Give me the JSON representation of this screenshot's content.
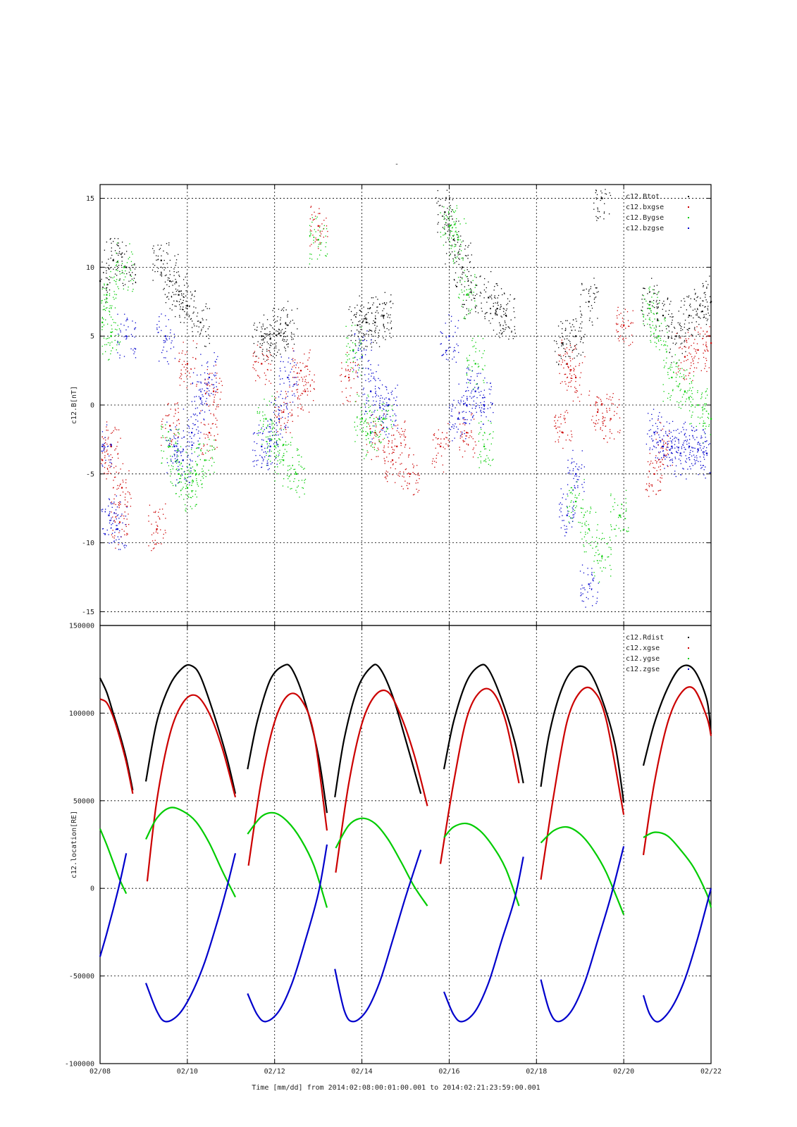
{
  "page_title": "-",
  "footer": {
    "time_label": "Time [mm/dd]  from 2014:02:08:00:01:00.001  to  2014:02:21:23:59:00.001"
  },
  "chart_data": [
    {
      "type": "scatter",
      "ylabel": "c12.B[nT]",
      "xlabel": "",
      "ylim": [
        -16,
        16
      ],
      "yticks": [
        -15,
        -10,
        -5,
        0,
        5,
        10,
        15
      ],
      "xlim": [
        0,
        14
      ],
      "x_unit": "days since 02/08 00:00",
      "grid": true,
      "legend_position": "top-right",
      "series": [
        {
          "name": "c12.Btot",
          "color": "#000000",
          "x": [
            0.0,
            0.3,
            0.6,
            1.4,
            1.6,
            1.8,
            2.0,
            2.3,
            3.7,
            3.9,
            4.1,
            4.3,
            5.9,
            6.1,
            6.3,
            6.5,
            7.9,
            8.1,
            8.3,
            8.5,
            8.9,
            9.1,
            9.3,
            10.6,
            10.9,
            11.2,
            11.5,
            12.6,
            12.9,
            13.2,
            13.5,
            13.8,
            14.0
          ],
          "y": [
            9,
            10.5,
            10,
            10.5,
            9,
            8,
            7.2,
            6,
            5,
            4.8,
            5.2,
            5.8,
            5.8,
            6,
            6,
            6.5,
            14,
            12,
            10,
            8.2,
            7.8,
            7,
            6.5,
            4.5,
            5,
            7.5,
            15,
            7.5,
            6.5,
            5,
            6.5,
            6.8,
            7.5
          ]
        },
        {
          "name": "c12.bxgse",
          "color": "#cc0000",
          "x": [
            0.05,
            0.25,
            0.5,
            0.45,
            1.3,
            1.6,
            2.0,
            2.5,
            2.6,
            3.7,
            4.2,
            4.6,
            4.7,
            5.0,
            5.7,
            6.3,
            6.7,
            6.8,
            7.1,
            7.8,
            8.4,
            10.6,
            10.7,
            10.9,
            11.4,
            11.7,
            12.0,
            12.7,
            12.9,
            13.4,
            13.7,
            14.0
          ],
          "y": [
            -4,
            -3,
            -6,
            -8.5,
            -9,
            -1.5,
            3,
            -2,
            1,
            3,
            -0.5,
            2.5,
            1,
            13,
            2,
            -2,
            -4,
            -3,
            -5,
            -3,
            -2,
            -2,
            3,
            2,
            -0.5,
            -1,
            5.8,
            -5,
            -3,
            3.5,
            4,
            4.5
          ]
        },
        {
          "name": "c12.Bygse",
          "color": "#00cc00",
          "x": [
            0.05,
            0.15,
            0.25,
            0.55,
            1.6,
            1.8,
            2.0,
            2.2,
            2.4,
            3.8,
            4.0,
            4.2,
            4.5,
            5.0,
            5.8,
            6.0,
            6.2,
            6.5,
            8.0,
            8.2,
            8.4,
            8.6,
            8.8,
            10.9,
            11.2,
            11.5,
            11.9,
            12.6,
            12.8,
            13.1,
            13.4,
            13.7,
            14.0
          ],
          "y": [
            6,
            8,
            5,
            10,
            -3,
            -5,
            -6,
            -5,
            -4,
            -1,
            -3,
            -4,
            -5,
            12,
            4,
            -1,
            -2,
            -1,
            13,
            12,
            8,
            3,
            -3,
            -7,
            -9,
            -11,
            -8,
            7,
            5,
            2,
            1,
            0,
            -1
          ]
        },
        {
          "name": "c12.bzgse",
          "color": "#0000cc",
          "x": [
            0.05,
            0.2,
            0.4,
            0.6,
            1.5,
            1.7,
            1.9,
            2.1,
            2.3,
            2.5,
            3.7,
            3.9,
            4.1,
            4.3,
            6.0,
            6.2,
            6.4,
            6.6,
            8.0,
            8.2,
            8.4,
            8.6,
            8.8,
            10.7,
            10.9,
            11.2,
            12.7,
            12.9,
            13.1,
            13.3,
            13.5,
            13.7,
            13.9
          ],
          "y": [
            -3,
            -8,
            -9,
            5,
            5,
            -3,
            -4,
            -2,
            0.5,
            2,
            -3,
            -3,
            -1,
            2,
            3.5,
            1,
            -1,
            0,
            5,
            -1,
            0,
            1,
            0,
            -8,
            -5,
            -13,
            -2,
            -3,
            -3,
            -3.5,
            -3,
            -3.2,
            -3.5
          ]
        }
      ]
    },
    {
      "type": "line",
      "ylabel": "c12.location[RE]",
      "xlabel": "Time [mm/dd]",
      "ylim": [
        -100000,
        150000
      ],
      "yticks": [
        -100000,
        -50000,
        0,
        50000,
        100000,
        150000
      ],
      "xlim": [
        0,
        14
      ],
      "x_unit": "days since 02/08 00:00",
      "xticks": [
        0,
        2,
        4,
        6,
        8,
        10,
        12,
        14
      ],
      "categories": [
        "02/08",
        "02/10",
        "02/12",
        "02/14",
        "02/16",
        "02/18",
        "02/20",
        "02/22"
      ],
      "grid": true,
      "legend_position": "top-right",
      "series": [
        {
          "name": "c12.Rdist",
          "color": "#000000",
          "segments": [
            {
              "x": [
                0.0,
                0.15,
                0.3,
                0.45,
                0.6,
                0.75
              ],
              "y": [
                120000,
                112000,
                100000,
                88000,
                74000,
                56000
              ]
            },
            {
              "x": [
                1.05,
                1.3,
                1.6,
                1.9,
                2.1,
                2.3,
                2.6,
                2.9,
                3.1
              ],
              "y": [
                61000,
                95000,
                116000,
                126000,
                127000,
                121000,
                100000,
                75000,
                54000
              ]
            },
            {
              "x": [
                3.38,
                3.6,
                3.9,
                4.2,
                4.4,
                4.7,
                5.0,
                5.2
              ],
              "y": [
                68000,
                95000,
                119000,
                127000,
                125000,
                106000,
                76000,
                43000
              ]
            },
            {
              "x": [
                5.38,
                5.6,
                5.9,
                6.2,
                6.4,
                6.7,
                7.0,
                7.35
              ],
              "y": [
                52000,
                86000,
                114000,
                126000,
                126000,
                110000,
                85000,
                54000
              ]
            },
            {
              "x": [
                7.88,
                8.1,
                8.4,
                8.7,
                8.9,
                9.2,
                9.5,
                9.7
              ],
              "y": [
                68000,
                95000,
                118000,
                127000,
                125000,
                108000,
                84000,
                60000
              ]
            },
            {
              "x": [
                10.1,
                10.3,
                10.6,
                10.9,
                11.2,
                11.5,
                11.8,
                12.0
              ],
              "y": [
                58000,
                89000,
                115000,
                126000,
                124000,
                108000,
                82000,
                49000
              ]
            },
            {
              "x": [
                12.45,
                12.7,
                13.0,
                13.3,
                13.6,
                13.9,
                14.0
              ],
              "y": [
                70000,
                94000,
                114000,
                126000,
                125000,
                108000,
                88000
              ]
            }
          ]
        },
        {
          "name": "c12.xgse",
          "color": "#cc0000",
          "segments": [
            {
              "x": [
                0.0,
                0.15,
                0.3,
                0.45,
                0.6,
                0.75
              ],
              "y": [
                108000,
                106000,
                98000,
                86000,
                72000,
                54000
              ]
            },
            {
              "x": [
                1.08,
                1.3,
                1.6,
                1.9,
                2.2,
                2.5,
                2.8,
                3.1
              ],
              "y": [
                4000,
                50000,
                88000,
                106000,
                110000,
                100000,
                80000,
                52000
              ]
            },
            {
              "x": [
                3.4,
                3.7,
                4.0,
                4.3,
                4.6,
                4.9,
                5.2
              ],
              "y": [
                13000,
                62000,
                95000,
                110000,
                108000,
                88000,
                33000
              ]
            },
            {
              "x": [
                5.4,
                5.7,
                6.0,
                6.3,
                6.6,
                6.9,
                7.2,
                7.5
              ],
              "y": [
                9000,
                60000,
                94000,
                110000,
                112000,
                98000,
                76000,
                47000
              ]
            },
            {
              "x": [
                7.8,
                8.1,
                8.4,
                8.7,
                9.0,
                9.3,
                9.6
              ],
              "y": [
                14000,
                60000,
                97000,
                112000,
                112000,
                95000,
                60000
              ]
            },
            {
              "x": [
                10.1,
                10.4,
                10.7,
                11.0,
                11.3,
                11.6,
                12.0
              ],
              "y": [
                5000,
                54000,
                95000,
                112000,
                113000,
                96000,
                42000
              ]
            },
            {
              "x": [
                12.45,
                12.7,
                13.0,
                13.3,
                13.6,
                13.9,
                14.0
              ],
              "y": [
                19000,
                60000,
                94000,
                111000,
                114000,
                98000,
                87000
              ]
            }
          ]
        },
        {
          "name": "c12.ygse",
          "color": "#00cc00",
          "segments": [
            {
              "x": [
                0.0,
                0.15,
                0.3,
                0.45,
                0.6
              ],
              "y": [
                34000,
                25000,
                15000,
                5000,
                -3000
              ]
            },
            {
              "x": [
                1.05,
                1.3,
                1.6,
                1.9,
                2.2,
                2.5,
                2.8,
                3.1
              ],
              "y": [
                28000,
                40000,
                46000,
                44000,
                38000,
                26000,
                10000,
                -5000
              ]
            },
            {
              "x": [
                3.38,
                3.7,
                4.0,
                4.3,
                4.6,
                4.9,
                5.2
              ],
              "y": [
                31000,
                41000,
                43000,
                38000,
                28000,
                13000,
                -11000
              ]
            },
            {
              "x": [
                5.4,
                5.7,
                6.0,
                6.3,
                6.6,
                6.9,
                7.2,
                7.5
              ],
              "y": [
                23000,
                36000,
                40000,
                37000,
                28000,
                15000,
                1000,
                -10000
              ]
            },
            {
              "x": [
                7.88,
                8.1,
                8.4,
                8.7,
                9.0,
                9.3,
                9.6
              ],
              "y": [
                29000,
                35000,
                37000,
                33000,
                24000,
                11000,
                -10000
              ]
            },
            {
              "x": [
                10.1,
                10.4,
                10.7,
                11.0,
                11.3,
                11.6,
                12.0
              ],
              "y": [
                26000,
                33000,
                35000,
                31000,
                22000,
                9000,
                -15000
              ]
            },
            {
              "x": [
                12.45,
                12.7,
                13.0,
                13.3,
                13.6,
                13.9,
                14.0
              ],
              "y": [
                29000,
                32000,
                30000,
                22000,
                12000,
                -3000,
                -11000
              ]
            }
          ]
        },
        {
          "name": "c12.zgse",
          "color": "#0000cc",
          "segments": [
            {
              "x": [
                0.0,
                0.15,
                0.3,
                0.45,
                0.6
              ],
              "y": [
                -39000,
                -26000,
                -12000,
                3000,
                20000
              ]
            },
            {
              "x": [
                1.05,
                1.3,
                1.5,
                1.8,
                2.1,
                2.4,
                2.7,
                2.9,
                3.1
              ],
              "y": [
                -54000,
                -70000,
                -76000,
                -72000,
                -60000,
                -42000,
                -18000,
                0,
                20000
              ]
            },
            {
              "x": [
                3.38,
                3.6,
                3.8,
                4.1,
                4.4,
                4.7,
                5.0,
                5.2
              ],
              "y": [
                -60000,
                -72000,
                -76000,
                -70000,
                -54000,
                -30000,
                -3000,
                25000
              ]
            },
            {
              "x": [
                5.38,
                5.6,
                5.8,
                6.1,
                6.4,
                6.7,
                7.0,
                7.35
              ],
              "y": [
                -46000,
                -70000,
                -76000,
                -70000,
                -54000,
                -30000,
                -5000,
                22000
              ]
            },
            {
              "x": [
                7.88,
                8.1,
                8.3,
                8.6,
                8.9,
                9.2,
                9.5,
                9.7
              ],
              "y": [
                -59000,
                -72000,
                -76000,
                -70000,
                -54000,
                -30000,
                -6000,
                18000
              ]
            },
            {
              "x": [
                10.1,
                10.3,
                10.5,
                10.8,
                11.1,
                11.4,
                11.7,
                12.0
              ],
              "y": [
                -52000,
                -70000,
                -76000,
                -70000,
                -54000,
                -30000,
                -5000,
                24000
              ]
            },
            {
              "x": [
                12.45,
                12.6,
                12.8,
                13.1,
                13.4,
                13.7,
                14.0
              ],
              "y": [
                -61000,
                -72000,
                -76000,
                -68000,
                -52000,
                -28000,
                0
              ]
            }
          ]
        }
      ]
    }
  ]
}
